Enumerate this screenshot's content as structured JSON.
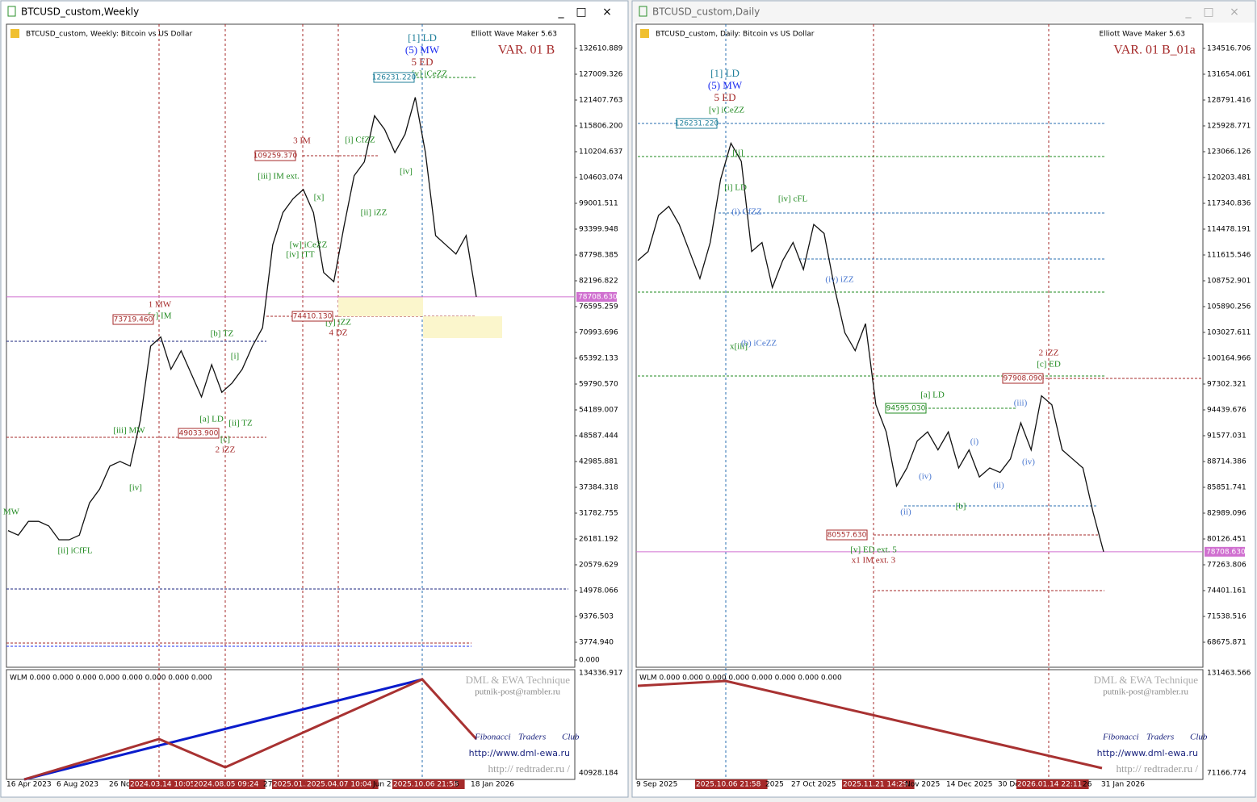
{
  "windows": [
    {
      "title": "BTCUSD_custom,Weekly",
      "header": "BTCUSD_custom, Weekly:  Bitcoin vs US Dollar",
      "tool": "Elliott Wave Maker 5.63",
      "variant": "VAR. 01 B",
      "price_axis": [
        "132610.889",
        "127009.326",
        "121407.763",
        "115806.200",
        "110204.637",
        "104603.074",
        "99001.511",
        "93399.948",
        "87798.385",
        "82196.822",
        "76595.259",
        "70993.696",
        "65392.133",
        "59790.570",
        "54189.007",
        "48587.444",
        "42985.881",
        "37384.318",
        "31782.755",
        "26181.192",
        "20579.629",
        "14978.066",
        "9376.503",
        "3774.940",
        "0.000"
      ],
      "current_price": "78708.630",
      "indicator": "WLM 0.000 0.000 0.000 0.000 0.000 0.000 0.000 0.000",
      "indicator_axis": [
        "134336.917",
        "40928.184"
      ],
      "watermark": {
        "technique": "DML & EWA Technique",
        "email": "putnik-post@rambler.ru",
        "club": [
          "Fibonacci",
          "Traders",
          "Club"
        ],
        "site": "http://www.dml-ewa.ru",
        "redtrader": "http:// redtrader.ru /"
      },
      "dates": [
        {
          "text": "16 Apr 2023",
          "highlight": false
        },
        {
          "text": "6 Aug 2023",
          "highlight": false
        },
        {
          "text": "26 No",
          "highlight": false
        },
        {
          "text": "2024.03.14 10:05",
          "highlight": true
        },
        {
          "text": "2024.08.05 09:24",
          "highlight": true
        },
        {
          "text": "27",
          "highlight": false
        },
        {
          "text": "2025.01.2",
          "highlight": true
        },
        {
          "text": "2025.04.07 10:04",
          "highlight": true
        },
        {
          "text": "Jun 2",
          "highlight": false
        },
        {
          "text": "2025.10.06 21:58",
          "highlight": true
        },
        {
          "text": "5",
          "highlight": false
        },
        {
          "text": "18 Jan 2026",
          "highlight": false
        }
      ],
      "wave_labels": [
        {
          "text": "[1] LD",
          "color": "#1f7f9a"
        },
        {
          "text": "(5) MW",
          "color": "#1e2ef0"
        },
        {
          "text": "5 ED",
          "color": "#a52a2a"
        },
        {
          "text": "[v] iCeZZ",
          "color": "#228b22"
        },
        {
          "text": "3 IM",
          "color": "#a52a2a"
        },
        {
          "text": "[i] CfZZ",
          "color": "#228b22"
        },
        {
          "text": "[iii] IM ext.",
          "color": "#228b22"
        },
        {
          "text": "[x]",
          "color": "#228b22"
        },
        {
          "text": "[ii] iZZ",
          "color": "#228b22"
        },
        {
          "text": "[iv]",
          "color": "#228b22"
        },
        {
          "text": "[w] iCeZZ",
          "color": "#228b22"
        },
        {
          "text": "[iv] iTT",
          "color": "#228b22"
        },
        {
          "text": "1 MW",
          "color": "#a52a2a"
        },
        {
          "text": "[v] IM",
          "color": "#228b22"
        },
        {
          "text": "[b] TZ",
          "color": "#228b22"
        },
        {
          "text": "[i]",
          "color": "#228b22"
        },
        {
          "text": "[y] iZZ",
          "color": "#228b22"
        },
        {
          "text": "4 DZ",
          "color": "#a52a2a"
        },
        {
          "text": "[iii] MW",
          "color": "#228b22"
        },
        {
          "text": "[a] LD",
          "color": "#228b22"
        },
        {
          "text": "[ii] TZ",
          "color": "#228b22"
        },
        {
          "text": "[c]",
          "color": "#228b22"
        },
        {
          "text": "2 iZZ",
          "color": "#a52a2a"
        },
        {
          "text": "[iv]",
          "color": "#228b22"
        },
        {
          "text": "[ii] iCfFL",
          "color": "#228b22"
        },
        {
          "text": "MW",
          "color": "#228b22"
        }
      ],
      "price_tags": [
        {
          "text": "126231.220",
          "color": "#1f7f9a"
        },
        {
          "text": "109259.370",
          "color": "#a52a2a"
        },
        {
          "text": "73719.460",
          "color": "#a52a2a"
        },
        {
          "text": "74410.130",
          "color": "#a52a2a"
        },
        {
          "text": "49033.900",
          "color": "#a52a2a"
        }
      ],
      "closes": [
        28000,
        27000,
        30000,
        30000,
        29000,
        26000,
        26000,
        27000,
        34000,
        37000,
        42000,
        43000,
        42000,
        52000,
        68000,
        70000,
        63000,
        67000,
        62000,
        57000,
        64000,
        58000,
        60000,
        63000,
        68000,
        72000,
        90000,
        97000,
        100000,
        102000,
        97000,
        84000,
        82000,
        94000,
        105000,
        108000,
        118000,
        115000,
        110000,
        114000,
        122000,
        110000,
        92000,
        90000,
        88000,
        92000,
        78708.63
      ]
    },
    {
      "title": "BTCUSD_custom,Daily",
      "header": "BTCUSD_custom, Daily:  Bitcoin vs US Dollar",
      "tool": "Elliott Wave Maker 5.63",
      "variant": "VAR. 01 B_01a",
      "price_axis": [
        "134516.706",
        "131654.061",
        "128791.416",
        "125928.771",
        "123066.126",
        "120203.481",
        "117340.836",
        "114478.191",
        "111615.546",
        "108752.901",
        "105890.256",
        "103027.611",
        "100164.966",
        "97302.321",
        "94439.676",
        "91577.031",
        "88714.386",
        "85851.741",
        "82989.096",
        "80126.451",
        "77263.806",
        "74401.161",
        "71538.516",
        "68675.871"
      ],
      "current_price": "78708.630",
      "indicator": "WLM 0.000 0.000 0.000 0.000 0.000 0.000 0.000 0.000",
      "indicator_axis": [
        "131463.566",
        "71166.774"
      ],
      "watermark": {
        "technique": "DML & EWA Technique",
        "email": "putnik-post@rambler.ru",
        "club": [
          "Fibonacci",
          "Traders",
          "Club"
        ],
        "site": "http://www.dml-ewa.ru",
        "redtrader": "http:// redtrader.ru /"
      },
      "dates": [
        {
          "text": "9 Sep 2025",
          "highlight": false
        },
        {
          "text": "2025.10.06 21:58",
          "highlight": true
        },
        {
          "text": "2025",
          "highlight": false
        },
        {
          "text": "27 Oct 2025",
          "highlight": false
        },
        {
          "text": "2025.11.21 14:29",
          "highlight": true
        },
        {
          "text": "Nov 2025",
          "highlight": false
        },
        {
          "text": "14 Dec 2025",
          "highlight": false
        },
        {
          "text": "30 De",
          "highlight": false
        },
        {
          "text": "2026.01.14 22:11",
          "highlight": true
        },
        {
          "text": "26",
          "highlight": false
        },
        {
          "text": "31 Jan 2026",
          "highlight": false
        }
      ],
      "wave_labels": [
        {
          "text": "[1] LD",
          "color": "#1f7f9a"
        },
        {
          "text": "(5) MW",
          "color": "#1e2ef0"
        },
        {
          "text": "5 ED",
          "color": "#a52a2a"
        },
        {
          "text": "[v] iCeZZ",
          "color": "#228b22"
        },
        {
          "text": "[ii]",
          "color": "#228b22"
        },
        {
          "text": "[i] LD",
          "color": "#228b22"
        },
        {
          "text": "[iv] cFL",
          "color": "#228b22"
        },
        {
          "text": "(i) CfZZ",
          "color": "#4a78d0"
        },
        {
          "text": "(iv) iZZ",
          "color": "#4a78d0"
        },
        {
          "text": "(b) iCeZZ",
          "color": "#4a78d0"
        },
        {
          "text": "x[iii]",
          "color": "#228b22"
        },
        {
          "text": "2 iZZ",
          "color": "#a52a2a"
        },
        {
          "text": "[c] ED",
          "color": "#228b22"
        },
        {
          "text": "[a] LD",
          "color": "#228b22"
        },
        {
          "text": "(iii)",
          "color": "#4a78d0"
        },
        {
          "text": "(i)",
          "color": "#4a78d0"
        },
        {
          "text": "(iv)",
          "color": "#4a78d0"
        },
        {
          "text": "(iv)",
          "color": "#4a78d0"
        },
        {
          "text": "(ii)",
          "color": "#4a78d0"
        },
        {
          "text": "(ii)",
          "color": "#4a78d0"
        },
        {
          "text": "[b]",
          "color": "#228b22"
        },
        {
          "text": "[v] ED ext. 5",
          "color": "#228b22"
        },
        {
          "text": "x1 IM ext. 3",
          "color": "#a52a2a"
        }
      ],
      "price_tags": [
        {
          "text": "126231.220",
          "color": "#1f7f9a"
        },
        {
          "text": "97908.090",
          "color": "#a52a2a"
        },
        {
          "text": "94595.030",
          "color": "#228b22"
        },
        {
          "text": "80557.630",
          "color": "#a52a2a"
        }
      ],
      "closes": [
        111000,
        112000,
        116000,
        117000,
        115000,
        112000,
        109000,
        113000,
        120000,
        124000,
        122000,
        112000,
        113000,
        108000,
        111000,
        113000,
        110000,
        115000,
        114000,
        108000,
        103000,
        101000,
        104000,
        95000,
        92000,
        86000,
        88000,
        91000,
        92000,
        90000,
        92000,
        88000,
        90000,
        87000,
        88000,
        87500,
        89000,
        93000,
        90000,
        96000,
        95000,
        90000,
        89000,
        88000,
        83000,
        78708.63
      ]
    }
  ]
}
